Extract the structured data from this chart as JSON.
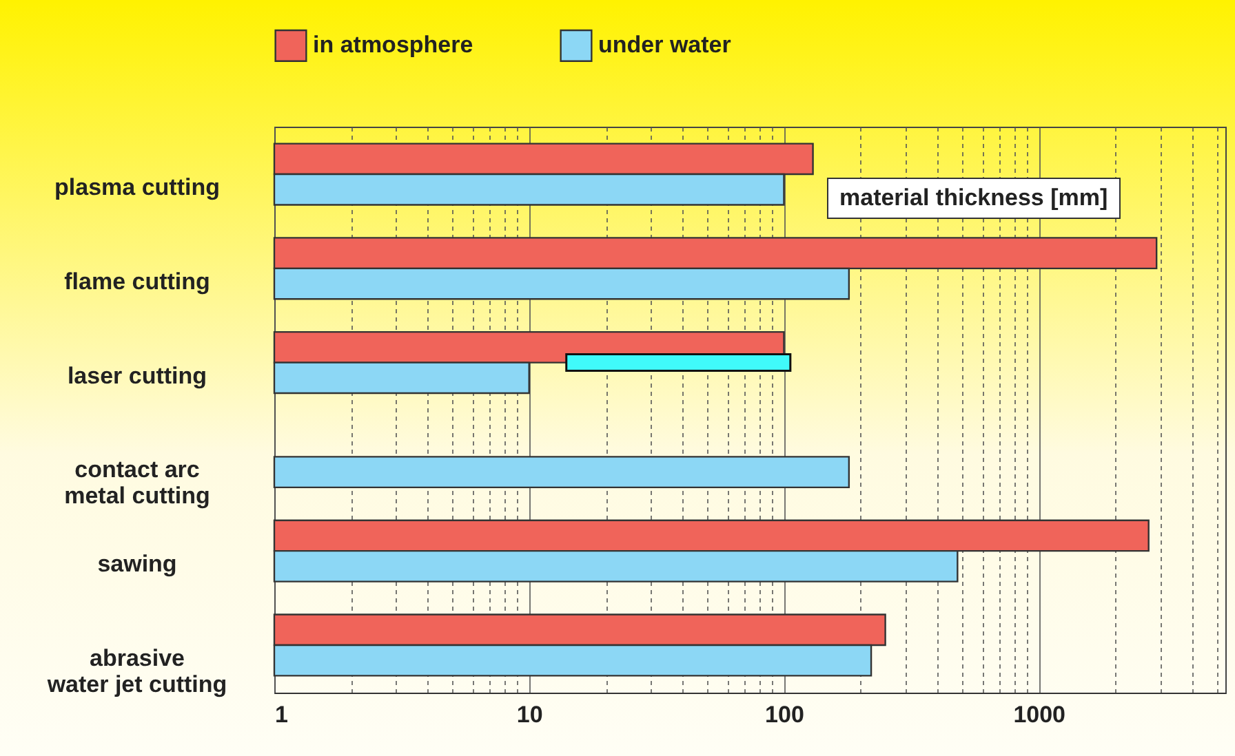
{
  "chart_data": {
    "type": "bar",
    "orientation": "horizontal",
    "log": "x",
    "xlabel": "material thickness [mm]",
    "categories": [
      "plasma cutting",
      "flame cutting",
      "laser cutting",
      "contact arc\nmetal cutting",
      "sawing",
      "abrasive\nwater jet cutting"
    ],
    "series": [
      {
        "name": "in atmosphere",
        "color": "#f0645a",
        "values": [
          130,
          2900,
          100,
          null,
          2700,
          250
        ]
      },
      {
        "name": "under water",
        "color": "#8cd7f5",
        "values": [
          100,
          180,
          10,
          180,
          480,
          220
        ]
      },
      {
        "color": "#40fafa",
        "base": [
          null,
          null,
          14,
          null,
          null,
          null
        ],
        "values": [
          null,
          null,
          92,
          null,
          null,
          null
        ]
      }
    ],
    "xlim": [
      1,
      5400
    ],
    "xticks": [
      1,
      {
        "value": 2,
        "label": null
      },
      {
        "value": 3,
        "label": null
      },
      {
        "value": 4,
        "label": null
      },
      {
        "value": 5,
        "label": null
      },
      {
        "value": 6,
        "label": null
      },
      {
        "value": 7,
        "label": null
      },
      {
        "value": 8,
        "label": null
      },
      {
        "value": 9,
        "label": null
      },
      10,
      {
        "value": 20,
        "label": null
      },
      {
        "value": 30,
        "label": null
      },
      {
        "value": 40,
        "label": null
      },
      {
        "value": 50,
        "label": null
      },
      {
        "value": 60,
        "label": null
      },
      {
        "value": 70,
        "label": null
      },
      {
        "value": 80,
        "label": null
      },
      {
        "value": 90,
        "label": null
      },
      100,
      {
        "value": 200,
        "label": null
      },
      {
        "value": 300,
        "label": null
      },
      {
        "value": 400,
        "label": null
      },
      {
        "value": 500,
        "label": null
      },
      {
        "value": 600,
        "label": null
      },
      {
        "value": 700,
        "label": null
      },
      {
        "value": 800,
        "label": null
      },
      {
        "value": 900,
        "label": null
      },
      1000,
      {
        "value": 2000,
        "label": null
      },
      {
        "value": 3000,
        "label": null
      },
      {
        "value": 4000,
        "label": null
      },
      {
        "value": 5000,
        "label": null
      }
    ],
    "grid": "x",
    "legend": "top"
  }
}
